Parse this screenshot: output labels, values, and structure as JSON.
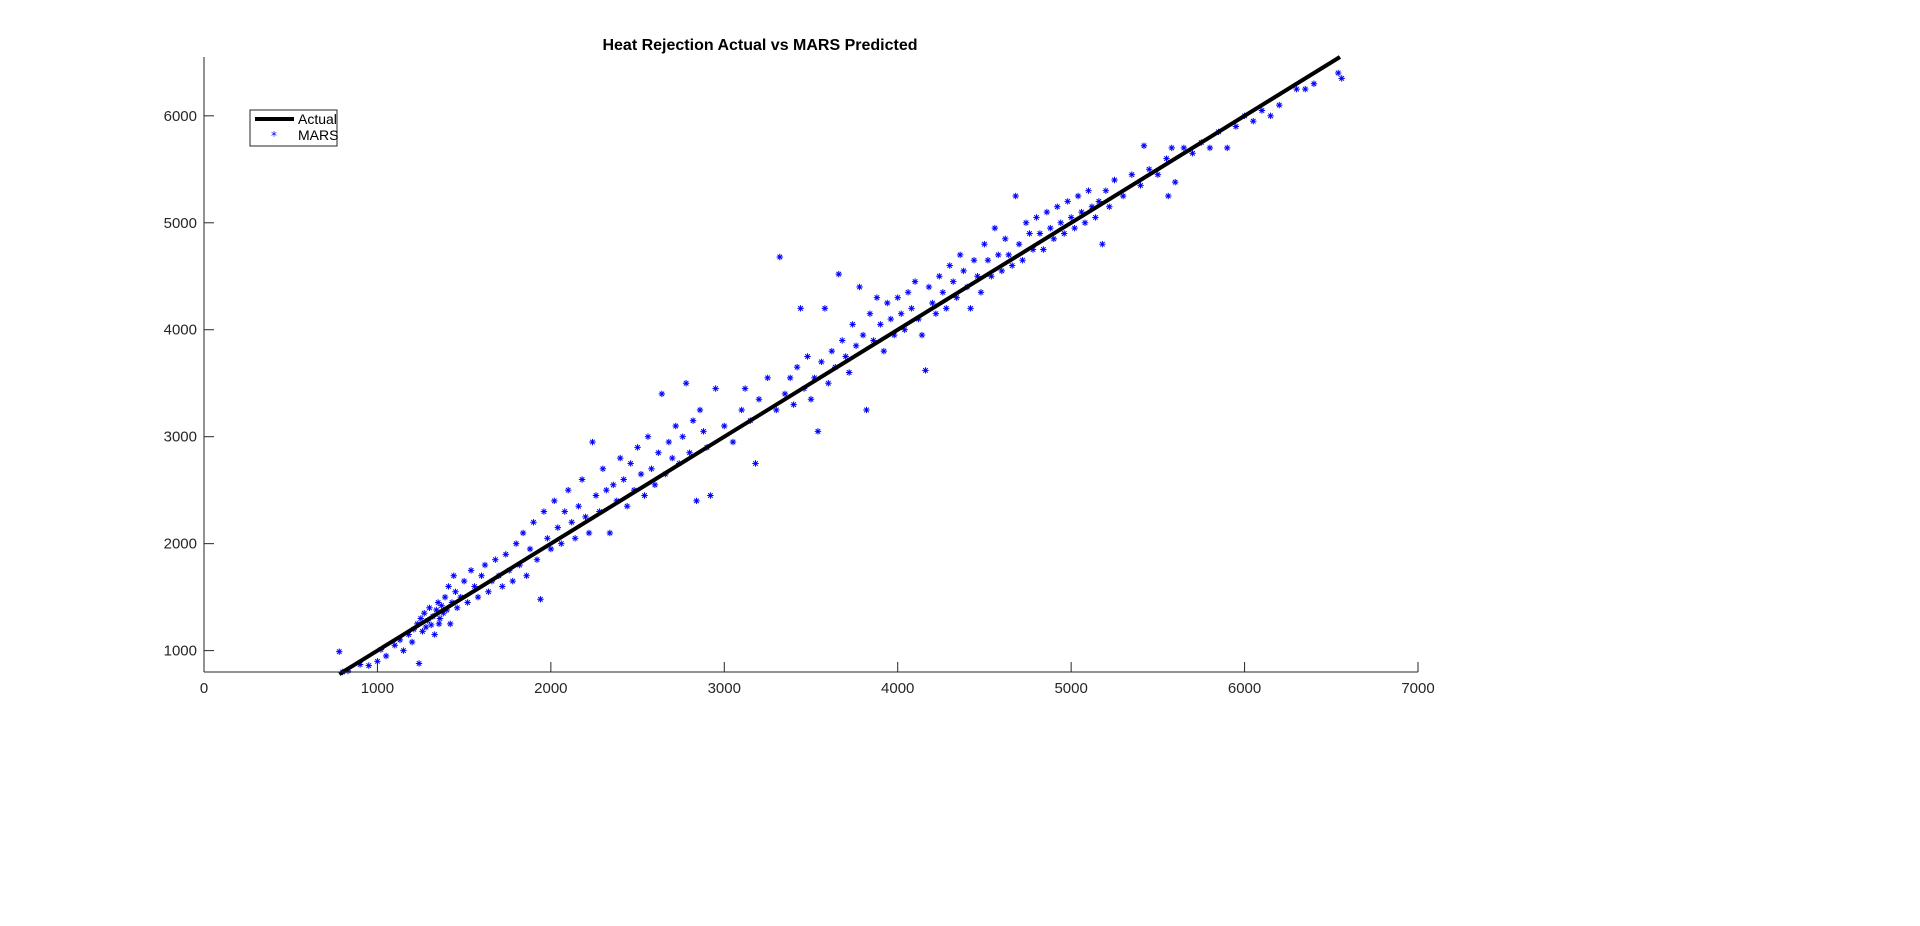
{
  "chart_data": {
    "type": "scatter",
    "title": "Heat Rejection Actual vs MARS Predicted",
    "xlabel": "",
    "ylabel": "",
    "xlim": [
      0,
      7000
    ],
    "ylim": [
      800,
      6550
    ],
    "xticks": [
      0,
      1000,
      2000,
      3000,
      4000,
      5000,
      6000,
      7000
    ],
    "yticks": [
      1000,
      2000,
      3000,
      4000,
      5000,
      6000
    ],
    "grid": false,
    "legend_position": "top-left",
    "colors": {
      "actual": "#000000",
      "mars": "#0000ff",
      "axis": "#262626"
    },
    "series": [
      {
        "name": "Actual",
        "style": "line",
        "x": [
          780,
          6550
        ],
        "y": [
          780,
          6550
        ]
      },
      {
        "name": "MARS",
        "style": "markers-asterisk",
        "points": [
          [
            780,
            990
          ],
          [
            800,
            800
          ],
          [
            830,
            810
          ],
          [
            900,
            870
          ],
          [
            950,
            860
          ],
          [
            1000,
            900
          ],
          [
            1020,
            1010
          ],
          [
            1050,
            950
          ],
          [
            1100,
            1050
          ],
          [
            1130,
            1100
          ],
          [
            1150,
            1000
          ],
          [
            1180,
            1150
          ],
          [
            1200,
            1080
          ],
          [
            1210,
            1200
          ],
          [
            1230,
            1250
          ],
          [
            1240,
            880
          ],
          [
            1250,
            1300
          ],
          [
            1260,
            1180
          ],
          [
            1270,
            1350
          ],
          [
            1280,
            1220
          ],
          [
            1290,
            1280
          ],
          [
            1300,
            1400
          ],
          [
            1310,
            1240
          ],
          [
            1320,
            1320
          ],
          [
            1330,
            1150
          ],
          [
            1340,
            1380
          ],
          [
            1350,
            1450
          ],
          [
            1355,
            1250
          ],
          [
            1360,
            1300
          ],
          [
            1370,
            1420
          ],
          [
            1380,
            1350
          ],
          [
            1390,
            1500
          ],
          [
            1400,
            1380
          ],
          [
            1410,
            1600
          ],
          [
            1420,
            1250
          ],
          [
            1430,
            1450
          ],
          [
            1440,
            1700
          ],
          [
            1450,
            1550
          ],
          [
            1460,
            1400
          ],
          [
            1480,
            1500
          ],
          [
            1500,
            1650
          ],
          [
            1520,
            1450
          ],
          [
            1540,
            1750
          ],
          [
            1560,
            1600
          ],
          [
            1580,
            1500
          ],
          [
            1600,
            1700
          ],
          [
            1620,
            1800
          ],
          [
            1640,
            1550
          ],
          [
            1660,
            1650
          ],
          [
            1680,
            1850
          ],
          [
            1700,
            1700
          ],
          [
            1720,
            1600
          ],
          [
            1740,
            1900
          ],
          [
            1760,
            1750
          ],
          [
            1780,
            1650
          ],
          [
            1800,
            2000
          ],
          [
            1820,
            1800
          ],
          [
            1840,
            2100
          ],
          [
            1860,
            1700
          ],
          [
            1880,
            1950
          ],
          [
            1900,
            2200
          ],
          [
            1920,
            1850
          ],
          [
            1940,
            1480
          ],
          [
            1960,
            2300
          ],
          [
            1980,
            2050
          ],
          [
            2000,
            1950
          ],
          [
            2020,
            2400
          ],
          [
            2040,
            2150
          ],
          [
            2060,
            2000
          ],
          [
            2080,
            2300
          ],
          [
            2100,
            2500
          ],
          [
            2120,
            2200
          ],
          [
            2140,
            2050
          ],
          [
            2160,
            2350
          ],
          [
            2180,
            2600
          ],
          [
            2200,
            2250
          ],
          [
            2220,
            2100
          ],
          [
            2240,
            2950
          ],
          [
            2260,
            2450
          ],
          [
            2280,
            2300
          ],
          [
            2300,
            2700
          ],
          [
            2320,
            2500
          ],
          [
            2340,
            2100
          ],
          [
            2360,
            2550
          ],
          [
            2380,
            2400
          ],
          [
            2400,
            2800
          ],
          [
            2420,
            2600
          ],
          [
            2440,
            2350
          ],
          [
            2460,
            2750
          ],
          [
            2480,
            2500
          ],
          [
            2500,
            2900
          ],
          [
            2520,
            2650
          ],
          [
            2540,
            2450
          ],
          [
            2560,
            3000
          ],
          [
            2580,
            2700
          ],
          [
            2600,
            2550
          ],
          [
            2620,
            2850
          ],
          [
            2640,
            3400
          ],
          [
            2660,
            2650
          ],
          [
            2680,
            2950
          ],
          [
            2700,
            2800
          ],
          [
            2720,
            3100
          ],
          [
            2740,
            2750
          ],
          [
            2760,
            3000
          ],
          [
            2780,
            3500
          ],
          [
            2800,
            2850
          ],
          [
            2820,
            3150
          ],
          [
            2840,
            2400
          ],
          [
            2860,
            3250
          ],
          [
            2880,
            3050
          ],
          [
            2900,
            2900
          ],
          [
            2920,
            2450
          ],
          [
            2950,
            3450
          ],
          [
            3000,
            3100
          ],
          [
            3050,
            2950
          ],
          [
            3100,
            3250
          ],
          [
            3120,
            3450
          ],
          [
            3150,
            3150
          ],
          [
            3180,
            2750
          ],
          [
            3200,
            3350
          ],
          [
            3250,
            3550
          ],
          [
            3300,
            3250
          ],
          [
            3320,
            4680
          ],
          [
            3350,
            3400
          ],
          [
            3380,
            3550
          ],
          [
            3400,
            3300
          ],
          [
            3420,
            3650
          ],
          [
            3440,
            4200
          ],
          [
            3460,
            3450
          ],
          [
            3480,
            3750
          ],
          [
            3500,
            3350
          ],
          [
            3520,
            3550
          ],
          [
            3540,
            3050
          ],
          [
            3560,
            3700
          ],
          [
            3580,
            4200
          ],
          [
            3600,
            3500
          ],
          [
            3620,
            3800
          ],
          [
            3640,
            3650
          ],
          [
            3660,
            4520
          ],
          [
            3680,
            3900
          ],
          [
            3700,
            3750
          ],
          [
            3720,
            3600
          ],
          [
            3740,
            4050
          ],
          [
            3760,
            3850
          ],
          [
            3780,
            4400
          ],
          [
            3800,
            3950
          ],
          [
            3820,
            3250
          ],
          [
            3840,
            4150
          ],
          [
            3860,
            3900
          ],
          [
            3880,
            4300
          ],
          [
            3900,
            4050
          ],
          [
            3920,
            3800
          ],
          [
            3940,
            4250
          ],
          [
            3960,
            4100
          ],
          [
            3980,
            3950
          ],
          [
            4000,
            4300
          ],
          [
            4020,
            4150
          ],
          [
            4040,
            4000
          ],
          [
            4060,
            4350
          ],
          [
            4080,
            4200
          ],
          [
            4100,
            4450
          ],
          [
            4120,
            4100
          ],
          [
            4140,
            3950
          ],
          [
            4160,
            3620
          ],
          [
            4180,
            4400
          ],
          [
            4200,
            4250
          ],
          [
            4220,
            4150
          ],
          [
            4240,
            4500
          ],
          [
            4260,
            4350
          ],
          [
            4280,
            4200
          ],
          [
            4300,
            4600
          ],
          [
            4320,
            4450
          ],
          [
            4340,
            4300
          ],
          [
            4360,
            4700
          ],
          [
            4380,
            4550
          ],
          [
            4400,
            4400
          ],
          [
            4420,
            4200
          ],
          [
            4440,
            4650
          ],
          [
            4460,
            4500
          ],
          [
            4480,
            4350
          ],
          [
            4500,
            4800
          ],
          [
            4520,
            4650
          ],
          [
            4540,
            4500
          ],
          [
            4560,
            4950
          ],
          [
            4580,
            4700
          ],
          [
            4600,
            4550
          ],
          [
            4620,
            4850
          ],
          [
            4640,
            4700
          ],
          [
            4660,
            4600
          ],
          [
            4680,
            5250
          ],
          [
            4700,
            4800
          ],
          [
            4720,
            4650
          ],
          [
            4740,
            5000
          ],
          [
            4760,
            4900
          ],
          [
            4780,
            4750
          ],
          [
            4800,
            5050
          ],
          [
            4820,
            4900
          ],
          [
            4840,
            4750
          ],
          [
            4860,
            5100
          ],
          [
            4880,
            4950
          ],
          [
            4900,
            4850
          ],
          [
            4920,
            5150
          ],
          [
            4940,
            5000
          ],
          [
            4960,
            4900
          ],
          [
            4980,
            5200
          ],
          [
            5000,
            5050
          ],
          [
            5020,
            4950
          ],
          [
            5040,
            5250
          ],
          [
            5060,
            5100
          ],
          [
            5080,
            5000
          ],
          [
            5100,
            5300
          ],
          [
            5120,
            5150
          ],
          [
            5140,
            5050
          ],
          [
            5160,
            5200
          ],
          [
            5180,
            4800
          ],
          [
            5200,
            5300
          ],
          [
            5220,
            5150
          ],
          [
            5250,
            5400
          ],
          [
            5300,
            5250
          ],
          [
            5350,
            5450
          ],
          [
            5400,
            5350
          ],
          [
            5420,
            5720
          ],
          [
            5450,
            5500
          ],
          [
            5500,
            5450
          ],
          [
            5550,
            5600
          ],
          [
            5560,
            5250
          ],
          [
            5580,
            5700
          ],
          [
            5600,
            5380
          ],
          [
            5650,
            5700
          ],
          [
            5700,
            5650
          ],
          [
            5750,
            5750
          ],
          [
            5800,
            5700
          ],
          [
            5850,
            5850
          ],
          [
            5900,
            5700
          ],
          [
            5950,
            5900
          ],
          [
            6000,
            6000
          ],
          [
            6050,
            5950
          ],
          [
            6100,
            6050
          ],
          [
            6150,
            6000
          ],
          [
            6200,
            6100
          ],
          [
            6300,
            6250
          ],
          [
            6350,
            6250
          ],
          [
            6400,
            6300
          ],
          [
            6540,
            6400
          ],
          [
            6560,
            6350
          ]
        ]
      }
    ]
  }
}
